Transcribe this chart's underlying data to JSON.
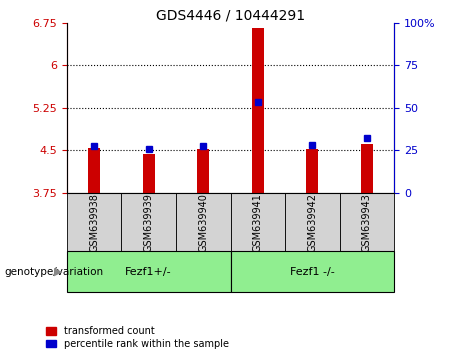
{
  "title": "GDS4446 / 10444291",
  "categories": [
    "GSM639938",
    "GSM639939",
    "GSM639940",
    "GSM639941",
    "GSM639942",
    "GSM639943"
  ],
  "red_values": [
    4.55,
    4.43,
    4.52,
    6.67,
    4.52,
    4.62
  ],
  "blue_values": [
    4.58,
    4.52,
    4.58,
    5.35,
    4.6,
    4.72
  ],
  "ylim_left": [
    3.75,
    6.75
  ],
  "ylim_right": [
    0,
    100
  ],
  "yticks_left": [
    3.75,
    4.5,
    5.25,
    6.0,
    6.75
  ],
  "yticks_right": [
    0,
    25,
    50,
    75,
    100
  ],
  "ytick_labels_left": [
    "3.75",
    "4.5",
    "5.25",
    "6",
    "6.75"
  ],
  "ytick_labels_right": [
    "0",
    "25",
    "50",
    "75",
    "100%"
  ],
  "hlines": [
    4.5,
    5.25,
    6.0
  ],
  "group1_label": "Fezf1+/-",
  "group2_label": "Fezf1 -/-",
  "group1_indices": [
    0,
    1,
    2
  ],
  "group2_indices": [
    3,
    4,
    5
  ],
  "xlabel_label": "genotype/variation",
  "legend_red": "transformed count",
  "legend_blue": "percentile rank within the sample",
  "red_color": "#cc0000",
  "blue_color": "#0000cc",
  "group_color": "#90ee90",
  "cat_box_color": "#d3d3d3",
  "ylabel_left_color": "#cc0000",
  "ylabel_right_color": "#0000cc",
  "title_fontsize": 10,
  "tick_fontsize": 8,
  "cat_fontsize": 7,
  "grp_fontsize": 8,
  "legend_fontsize": 7
}
